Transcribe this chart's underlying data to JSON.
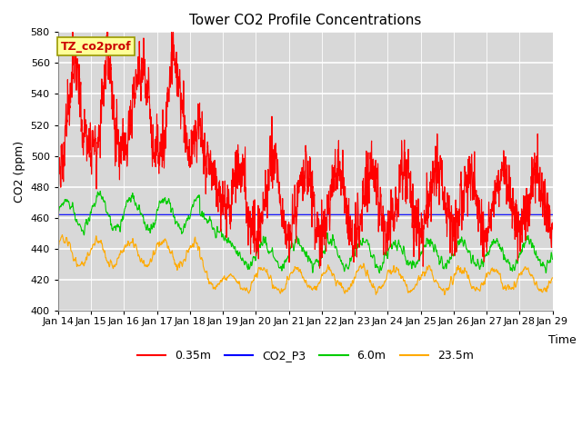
{
  "title": "Tower CO2 Profile Concentrations",
  "xlabel": "Time",
  "ylabel": "CO2 (ppm)",
  "ylim": [
    400,
    580
  ],
  "yticks": [
    400,
    420,
    440,
    460,
    480,
    500,
    520,
    540,
    560,
    580
  ],
  "x_labels": [
    "Jan 14",
    "Jan 15",
    "Jan 16",
    "Jan 17",
    "Jan 18",
    "Jan 19",
    "Jan 20",
    "Jan 21",
    "Jan 22",
    "Jan 23",
    "Jan 24",
    "Jan 25",
    "Jan 26",
    "Jan 27",
    "Jan 28",
    "Jan 29"
  ],
  "colors": {
    "0.35m": "#ff0000",
    "CO2_P3": "#0000ff",
    "6.0m": "#00cc00",
    "23.5m": "#ffaa00"
  },
  "legend_label": "TZ_co2prof",
  "legend_bg": "#ffff99",
  "legend_border": "#cccc00",
  "fig_bg": "#ffffff",
  "plot_bg": "#d8d8d8",
  "grid_color": "#ffffff",
  "linewidth": 0.8,
  "n_points": 3000
}
